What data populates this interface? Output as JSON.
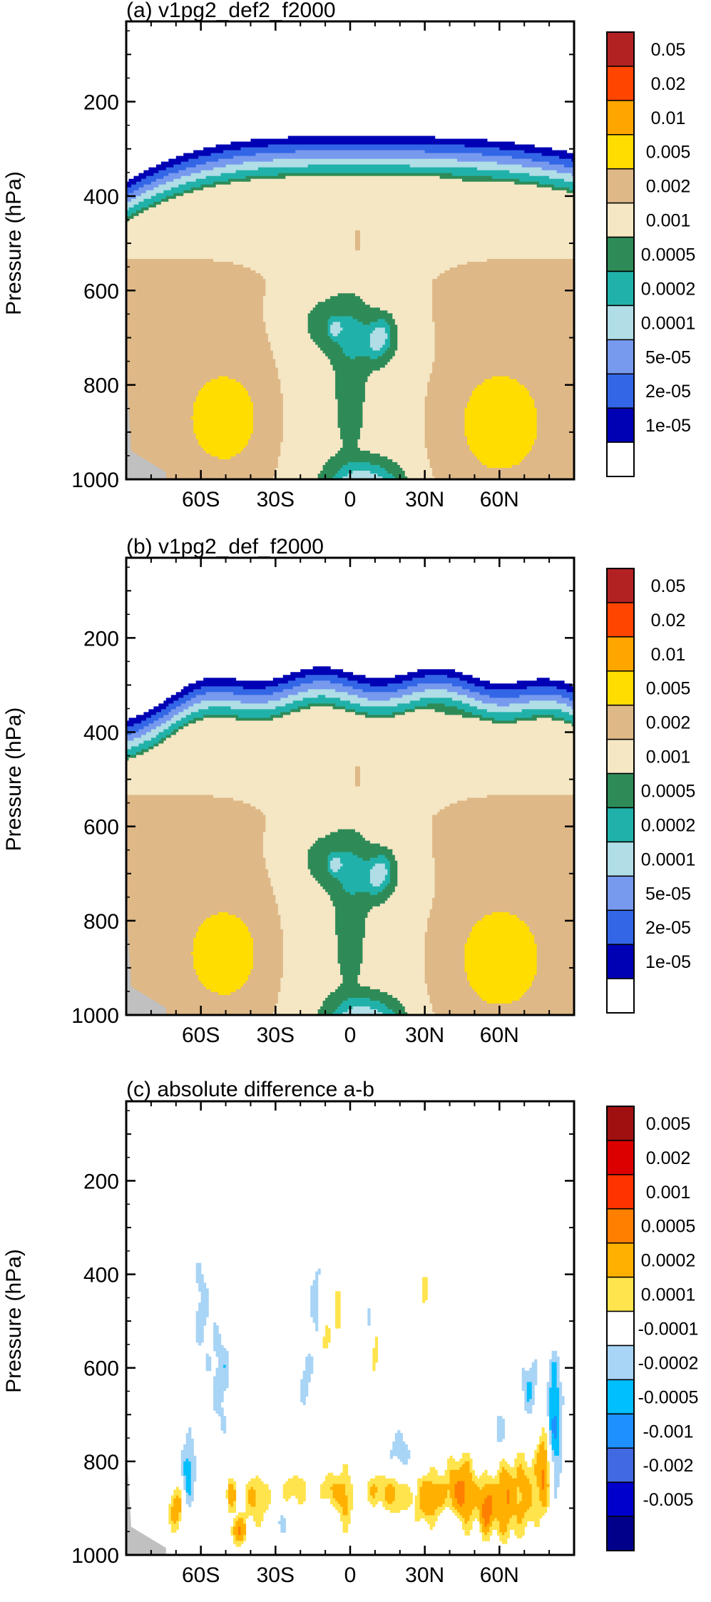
{
  "colors": {
    "panel_ab": [
      "#ffffff",
      "#0000b4",
      "#3366e6",
      "#7799ee",
      "#b0dde6",
      "#20b2aa",
      "#2e8b57",
      "#f5e6c4",
      "#deb887",
      "#ffdd00",
      "#ffa500",
      "#ff4500",
      "#b22222"
    ],
    "panel_c": [
      "#00008b",
      "#0000cd",
      "#4169e1",
      "#1e90ff",
      "#00bfff",
      "#a8d4f5",
      "#ffffff",
      "#ffe44d",
      "#ffb000",
      "#ff7f00",
      "#ff3300",
      "#dd0000",
      "#a01010"
    ],
    "missing": "#c0c0c0"
  },
  "chart_data": [
    {
      "type": "heatmap",
      "title": "(a) v1pg2_def2_f2000",
      "ylabel": "Pressure (hPa)",
      "xlabel": "",
      "x_ticks": [
        "60S",
        "30S",
        "0",
        "30N",
        "60N"
      ],
      "x_tick_values": [
        -60,
        -30,
        0,
        30,
        60
      ],
      "xlim": [
        -90,
        90
      ],
      "y_ticks": [
        "200",
        "400",
        "600",
        "800",
        "1000"
      ],
      "y_tick_values": [
        200,
        400,
        600,
        800,
        1000
      ],
      "ylim": [
        30,
        1000
      ],
      "colorbar_levels": [
        "1e-05",
        "2e-05",
        "5e-05",
        "0.0001",
        "0.0002",
        "0.0005",
        "0.001",
        "0.002",
        "0.005",
        "0.01",
        "0.02",
        "0.05"
      ],
      "palette": "panel_ab"
    },
    {
      "type": "heatmap",
      "title": "(b) v1pg2_def_f2000",
      "ylabel": "Pressure (hPa)",
      "xlabel": "",
      "x_ticks": [
        "60S",
        "30S",
        "0",
        "30N",
        "60N"
      ],
      "x_tick_values": [
        -60,
        -30,
        0,
        30,
        60
      ],
      "xlim": [
        -90,
        90
      ],
      "y_ticks": [
        "200",
        "400",
        "600",
        "800",
        "1000"
      ],
      "y_tick_values": [
        200,
        400,
        600,
        800,
        1000
      ],
      "ylim": [
        30,
        1000
      ],
      "colorbar_levels": [
        "1e-05",
        "2e-05",
        "5e-05",
        "0.0001",
        "0.0002",
        "0.0005",
        "0.001",
        "0.002",
        "0.005",
        "0.01",
        "0.02",
        "0.05"
      ],
      "palette": "panel_ab"
    },
    {
      "type": "heatmap",
      "title": "(c) absolute difference a-b",
      "ylabel": "Pressure (hPa)",
      "xlabel": "",
      "x_ticks": [
        "60S",
        "30S",
        "0",
        "30N",
        "60N"
      ],
      "x_tick_values": [
        -60,
        -30,
        0,
        30,
        60
      ],
      "xlim": [
        -90,
        90
      ],
      "y_ticks": [
        "200",
        "400",
        "600",
        "800",
        "1000"
      ],
      "y_tick_values": [
        200,
        400,
        600,
        800,
        1000
      ],
      "ylim": [
        30,
        1000
      ],
      "colorbar_levels": [
        "-0.005",
        "-0.002",
        "-0.001",
        "-0.0005",
        "-0.0002",
        "-0.0001",
        "0.0001",
        "0.0002",
        "0.0005",
        "0.001",
        "0.002",
        "0.005"
      ],
      "palette": "panel_c"
    }
  ]
}
